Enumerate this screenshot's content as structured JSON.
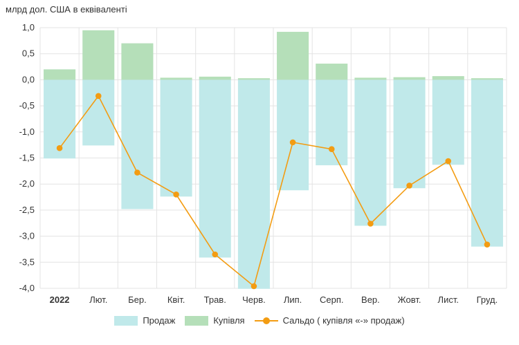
{
  "chart_data": {
    "type": "bar",
    "ylabel": "млрд дол. США в еквіваленті",
    "categories": [
      "2022",
      "Лют.",
      "Бер.",
      "Квіт.",
      "Трав.",
      "Черв.",
      "Лип.",
      "Серп.",
      "Вер.",
      "Жовт.",
      "Лист.",
      "Груд."
    ],
    "ylim": [
      -4.0,
      1.0
    ],
    "yticks": [
      "1,0",
      "0,5",
      "0,0",
      "-0,5",
      "-1,0",
      "-1,5",
      "-2,0",
      "-2,5",
      "-3,0",
      "-3,5",
      "-4,0"
    ],
    "grid": true,
    "legend_position": "bottom",
    "series": [
      {
        "name": "Продаж",
        "kind": "bar",
        "color": "#c0e9ea",
        "values": [
          -1.51,
          -1.26,
          -2.48,
          -2.24,
          -3.41,
          -4.01,
          -2.12,
          -1.64,
          -2.8,
          -2.08,
          -1.63,
          -3.2
        ]
      },
      {
        "name": "Купівля",
        "kind": "bar",
        "color": "#b5dfb9",
        "values": [
          0.2,
          0.95,
          0.7,
          0.04,
          0.06,
          0.03,
          0.92,
          0.31,
          0.04,
          0.05,
          0.07,
          0.03
        ]
      },
      {
        "name": "Сальдо ( купівля «-» продаж)",
        "kind": "line",
        "color": "#f39c12",
        "values": [
          -1.31,
          -0.31,
          -1.78,
          -2.2,
          -3.35,
          -3.96,
          -1.2,
          -1.33,
          -2.76,
          -2.03,
          -1.56,
          -3.16
        ]
      }
    ]
  }
}
